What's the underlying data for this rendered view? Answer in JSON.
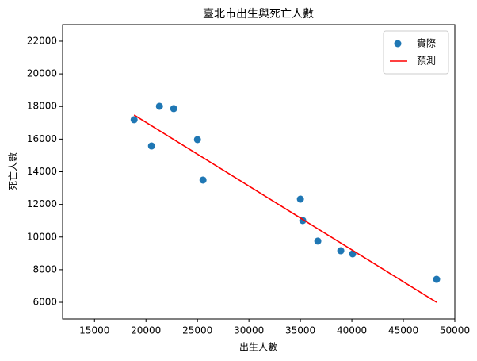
{
  "chart_data": {
    "type": "scatter",
    "title": "臺北市出生與死亡人數",
    "x_label": "出生人數",
    "y_label": "死亡人數",
    "xlim": [
      11900,
      50000
    ],
    "ylim": [
      4980,
      23020
    ],
    "xticks": [
      15000,
      20000,
      25000,
      30000,
      35000,
      40000,
      45000,
      50000
    ],
    "yticks": [
      6000,
      8000,
      10000,
      12000,
      14000,
      16000,
      18000,
      20000,
      22000
    ],
    "legend": "upper right",
    "series": [
      {
        "name": "實際",
        "type": "scatter",
        "color": "#1f77b4",
        "x": [
          18846,
          21308,
          22692,
          20538,
          25000,
          25538,
          35000,
          35231,
          36692,
          38923,
          40077,
          48231
        ],
        "values": [
          17190,
          18013,
          17870,
          15580,
          15970,
          13490,
          12320,
          11010,
          9750,
          9160,
          8970,
          7410
        ]
      },
      {
        "name": "預測",
        "type": "line",
        "color": "#ff0000",
        "x": [
          18846,
          48231
        ],
        "values": [
          17480,
          6000
        ]
      }
    ]
  }
}
